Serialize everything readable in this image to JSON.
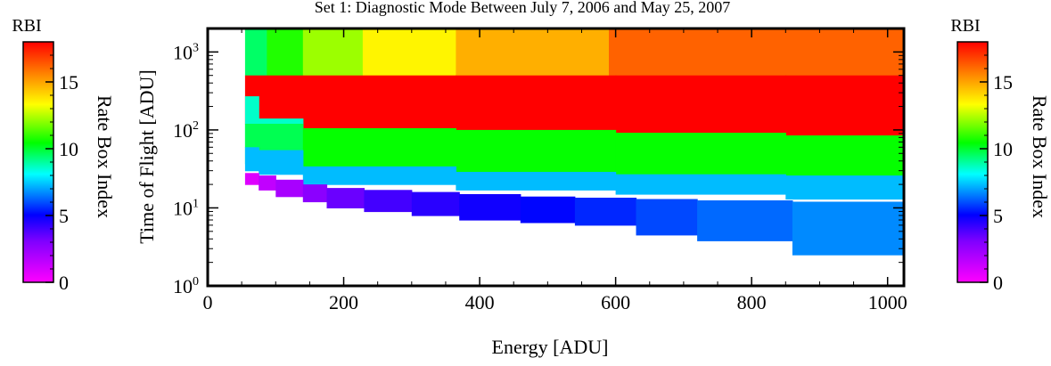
{
  "chart_data": {
    "type": "heatmap",
    "title": "Set 1: Diagnostic Mode Between July 7, 2006 and May 25, 2007",
    "xlabel": "Energy [ADU]",
    "ylabel": "Time of Flight [ADU]",
    "xlim": [
      0,
      1024
    ],
    "ylim": [
      1,
      2000
    ],
    "y_scale": "log",
    "x_ticks": [
      "0",
      "200",
      "400",
      "600",
      "800",
      "1000"
    ],
    "y_ticks": [
      {
        "base": "10",
        "exp": "0"
      },
      {
        "base": "10",
        "exp": "1"
      },
      {
        "base": "10",
        "exp": "2"
      },
      {
        "base": "10",
        "exp": "3"
      }
    ],
    "colorbar": {
      "title": "RBI",
      "label": "Rate Box Index",
      "range": [
        0,
        18
      ],
      "ticks": [
        "0",
        "5",
        "10",
        "15"
      ]
    },
    "cells": [
      {
        "x": [
          55,
          87
        ],
        "y": [
          500,
          2000
        ],
        "v": 9.5
      },
      {
        "x": [
          87,
          140
        ],
        "y": [
          500,
          2000
        ],
        "v": 10.8
      },
      {
        "x": [
          140,
          228
        ],
        "y": [
          500,
          2000
        ],
        "v": 12.2
      },
      {
        "x": [
          228,
          365
        ],
        "y": [
          500,
          2000
        ],
        "v": 13.5
      },
      {
        "x": [
          365,
          590
        ],
        "y": [
          500,
          2000
        ],
        "v": 14.8
      },
      {
        "x": [
          590,
          1024
        ],
        "y": [
          500,
          2000
        ],
        "v": 16.2
      },
      {
        "x": [
          55,
          140
        ],
        "y": [
          120,
          500
        ],
        "v": 18
      },
      {
        "x": [
          140,
          365
        ],
        "y": [
          105,
          500
        ],
        "v": 18
      },
      {
        "x": [
          365,
          600
        ],
        "y": [
          100,
          500
        ],
        "v": 18
      },
      {
        "x": [
          600,
          850
        ],
        "y": [
          92,
          500
        ],
        "v": 18
      },
      {
        "x": [
          850,
          1024
        ],
        "y": [
          85,
          500
        ],
        "v": 18
      },
      {
        "x": [
          55,
          75
        ],
        "y": [
          60,
          270
        ],
        "v": 8.6
      },
      {
        "x": [
          75,
          140
        ],
        "y": [
          55,
          140
        ],
        "v": 8.6
      },
      {
        "x": [
          55,
          75
        ],
        "y": [
          37,
          120
        ],
        "v": 9.7
      },
      {
        "x": [
          75,
          140
        ],
        "y": [
          38,
          120
        ],
        "v": 9.7
      },
      {
        "x": [
          140,
          365
        ],
        "y": [
          34,
          105
        ],
        "v": 10.5
      },
      {
        "x": [
          365,
          600
        ],
        "y": [
          29,
          100
        ],
        "v": 10.5
      },
      {
        "x": [
          600,
          850
        ],
        "y": [
          27,
          92
        ],
        "v": 10.5
      },
      {
        "x": [
          850,
          1024
        ],
        "y": [
          26,
          85
        ],
        "v": 10.5
      },
      {
        "x": [
          55,
          75
        ],
        "y": [
          30,
          60
        ],
        "v": 7.3
      },
      {
        "x": [
          75,
          140
        ],
        "y": [
          27,
          55
        ],
        "v": 7.3
      },
      {
        "x": [
          140,
          365
        ],
        "y": [
          20,
          34
        ],
        "v": 7.3
      },
      {
        "x": [
          365,
          600
        ],
        "y": [
          17,
          29
        ],
        "v": 7.3
      },
      {
        "x": [
          600,
          850
        ],
        "y": [
          15,
          27
        ],
        "v": 7.3
      },
      {
        "x": [
          850,
          1024
        ],
        "y": [
          13,
          26
        ],
        "v": 7.3
      },
      {
        "x": [
          55,
          75
        ],
        "y": [
          20,
          28
        ],
        "v": 0.8
      },
      {
        "x": [
          75,
          100
        ],
        "y": [
          17,
          26
        ],
        "v": 1.5
      },
      {
        "x": [
          100,
          140
        ],
        "y": [
          14,
          23
        ],
        "v": 2.1
      },
      {
        "x": [
          140,
          175
        ],
        "y": [
          12,
          20
        ],
        "v": 2.8
      },
      {
        "x": [
          175,
          230
        ],
        "y": [
          10,
          18
        ],
        "v": 3.4
      },
      {
        "x": [
          230,
          300
        ],
        "y": [
          9,
          17
        ],
        "v": 4.0
      },
      {
        "x": [
          300,
          370
        ],
        "y": [
          8,
          16
        ],
        "v": 4.4
      },
      {
        "x": [
          370,
          460
        ],
        "y": [
          7,
          15
        ],
        "v": 4.8
      },
      {
        "x": [
          460,
          540
        ],
        "y": [
          6.5,
          14
        ],
        "v": 5.1
      },
      {
        "x": [
          540,
          630
        ],
        "y": [
          6,
          13.5
        ],
        "v": 5.5
      },
      {
        "x": [
          630,
          720
        ],
        "y": [
          4.5,
          13
        ],
        "v": 5.9
      },
      {
        "x": [
          720,
          860
        ],
        "y": [
          3.8,
          12.5
        ],
        "v": 6.3
      },
      {
        "x": [
          860,
          1024
        ],
        "y": [
          2.5,
          12
        ],
        "v": 6.7
      }
    ]
  }
}
